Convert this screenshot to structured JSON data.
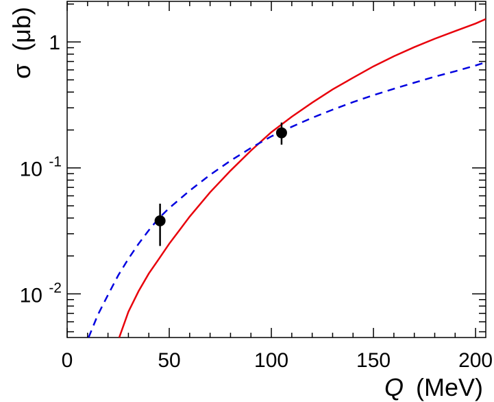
{
  "chart_data": {
    "type": "line",
    "xlabel": {
      "var": "Q",
      "unit": "(MeV)"
    },
    "ylabel": {
      "var": "σ",
      "unit": "(μb)"
    },
    "xlim": [
      0,
      205
    ],
    "ylim": [
      0.0045,
      2.1
    ],
    "yscale": "log",
    "grid": false,
    "x_ticks": [
      {
        "value": 0,
        "label": "0"
      },
      {
        "value": 50,
        "label": "50"
      },
      {
        "value": 100,
        "label": "100"
      },
      {
        "value": 150,
        "label": "150"
      },
      {
        "value": 200,
        "label": "200"
      }
    ],
    "y_ticks": [
      {
        "value": 0.01,
        "base": "10",
        "exp": "-2"
      },
      {
        "value": 0.1,
        "base": "10",
        "exp": "-1"
      },
      {
        "value": 1,
        "base": "1",
        "exp": ""
      }
    ],
    "series": [
      {
        "style": "solid",
        "color": "#e8000b",
        "x": [
          25.5,
          30,
          35,
          40,
          45,
          50,
          55,
          60,
          70,
          80,
          90,
          100,
          110,
          120,
          130,
          140,
          150,
          160,
          170,
          180,
          190,
          200,
          205
        ],
        "y": [
          0.0045,
          0.0072,
          0.0105,
          0.0145,
          0.019,
          0.025,
          0.032,
          0.041,
          0.064,
          0.095,
          0.137,
          0.192,
          0.255,
          0.33,
          0.42,
          0.52,
          0.64,
          0.77,
          0.91,
          1.06,
          1.22,
          1.4,
          1.52
        ]
      },
      {
        "style": "dashed",
        "color": "#0000e0",
        "x": [
          10.5,
          15,
          20,
          25,
          30,
          35,
          40,
          45,
          50,
          60,
          70,
          80,
          90,
          100,
          110,
          120,
          130,
          140,
          150,
          160,
          170,
          180,
          190,
          200,
          205
        ],
        "y": [
          0.0045,
          0.0068,
          0.0098,
          0.014,
          0.019,
          0.025,
          0.032,
          0.04,
          0.048,
          0.066,
          0.088,
          0.114,
          0.144,
          0.178,
          0.212,
          0.25,
          0.29,
          0.333,
          0.378,
          0.425,
          0.475,
          0.53,
          0.585,
          0.65,
          0.69
        ]
      },
      {
        "style": "markers",
        "color": "#000000",
        "x": [
          45.5,
          105
        ],
        "y": [
          0.038,
          0.19
        ],
        "yerr_low": [
          0.024,
          0.153
        ],
        "yerr_high": [
          0.052,
          0.229
        ]
      }
    ]
  }
}
